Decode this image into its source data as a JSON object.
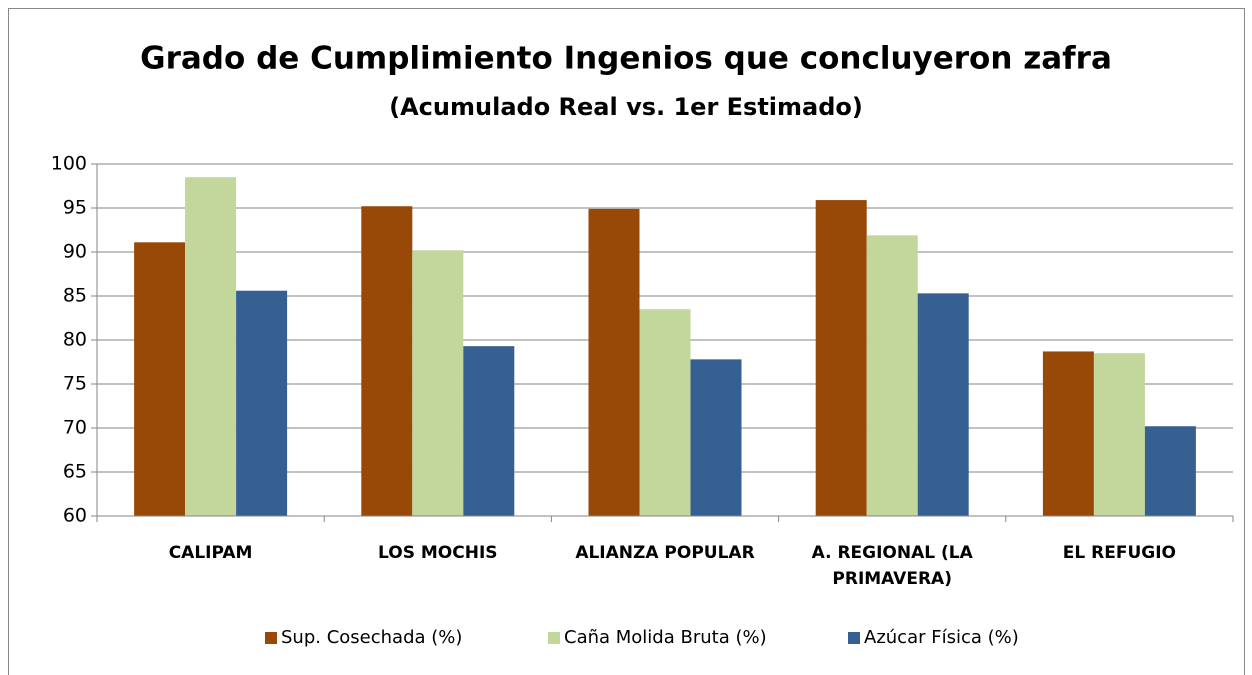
{
  "chart_data": {
    "type": "bar",
    "title": "Grado de Cumplimiento Ingenios que concluyeron zafra",
    "subtitle": "(Acumulado Real vs. 1er Estimado)",
    "categories": [
      "CALIPAM",
      "LOS MOCHIS",
      "ALIANZA POPULAR",
      "A. REGIONAL (LA PRIMAVERA)",
      "EL REFUGIO"
    ],
    "series": [
      {
        "name": "Sup. Cosechada (%)",
        "color": "#984807",
        "values": [
          91.1,
          95.2,
          94.9,
          95.9,
          78.7
        ]
      },
      {
        "name": "Caña Molida Bruta (%)",
        "color": "#c3d69b",
        "values": [
          98.5,
          90.2,
          83.5,
          91.9,
          78.5
        ]
      },
      {
        "name": "Azúcar Física (%)",
        "color": "#376092",
        "values": [
          85.6,
          79.3,
          77.8,
          85.3,
          70.2
        ]
      }
    ],
    "ylim": [
      60,
      100
    ],
    "yticks": [
      60,
      65,
      70,
      75,
      80,
      85,
      90,
      95,
      100
    ],
    "grid": true,
    "legend": "bottom"
  }
}
